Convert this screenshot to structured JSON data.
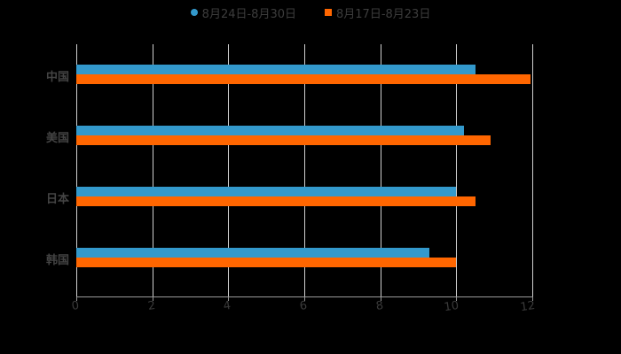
{
  "chart_data": {
    "type": "bar",
    "orientation": "horizontal",
    "categories": [
      "中国",
      "美国",
      "日本",
      "韩国"
    ],
    "series": [
      {
        "name": "8月24日-8月30日",
        "color": "#3399cc",
        "values": [
          10.5,
          10.2,
          10.0,
          9.3
        ]
      },
      {
        "name": "8月17日-8月23日",
        "color": "#ff6600",
        "values": [
          11.95,
          10.9,
          10.5,
          10.0
        ]
      }
    ],
    "xlim": [
      0,
      12
    ],
    "xticks": [
      "0",
      "2",
      "4",
      "6",
      "8",
      "10",
      "12"
    ],
    "title": "",
    "xlabel": "",
    "ylabel": "",
    "grid": true,
    "legend_position": "top"
  }
}
